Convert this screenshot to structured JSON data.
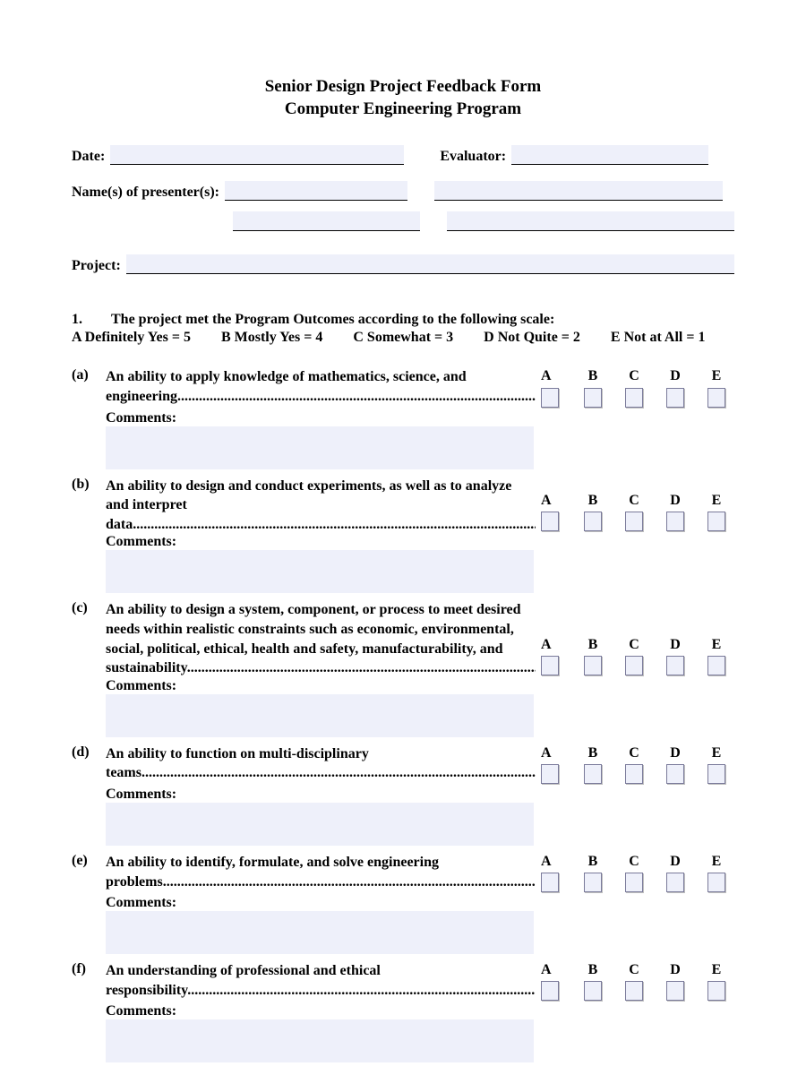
{
  "colors": {
    "field_bg": "#eef0fa",
    "text": "#000000",
    "page_bg": "#ffffff",
    "checkbox_border": "#7a7a9a"
  },
  "title": {
    "line1": "Senior Design Project Feedback Form",
    "line2": "Computer Engineering Program"
  },
  "labels": {
    "date": "Date:",
    "evaluator": "Evaluator:",
    "presenters": "Name(s) of presenter(s):",
    "project": "Project:",
    "comments": "Comments:"
  },
  "section1": {
    "number": "1.",
    "intro": "The project met the Program Outcomes according to the following scale:",
    "scale": [
      "A  Definitely Yes = 5",
      "B  Mostly Yes = 4",
      "C  Somewhat = 3",
      "D  Not Quite = 2",
      "E  Not at All = 1"
    ],
    "rating_labels": [
      "A",
      "B",
      "C",
      "D",
      "E"
    ]
  },
  "items": [
    {
      "id": "a",
      "letter": "(a)",
      "text": "An ability to apply knowledge of mathematics, science, and engineering",
      "trailing_dots": true
    },
    {
      "id": "b",
      "letter": "(b)",
      "text": "An ability to design and conduct experiments, as well as to analyze and interpret data",
      "trailing_dots": true
    },
    {
      "id": "c",
      "letter": "(c)",
      "text": "An ability to design a system, component, or process to meet desired needs within realistic constraints such as economic, environmental, social, political, ethical, health and safety, manufacturability, and sustainability",
      "trailing_dots": true
    },
    {
      "id": "d",
      "letter": "(d)",
      "text": "An ability to function on multi-disciplinary teams",
      "trailing_dots": true
    },
    {
      "id": "e",
      "letter": "(e)",
      "text": "An ability to identify, formulate, and solve engineering problems",
      "trailing_dots": true
    },
    {
      "id": "f",
      "letter": "(f)",
      "text": "An understanding of professional and ethical responsibility",
      "trailing_dots": true
    }
  ]
}
